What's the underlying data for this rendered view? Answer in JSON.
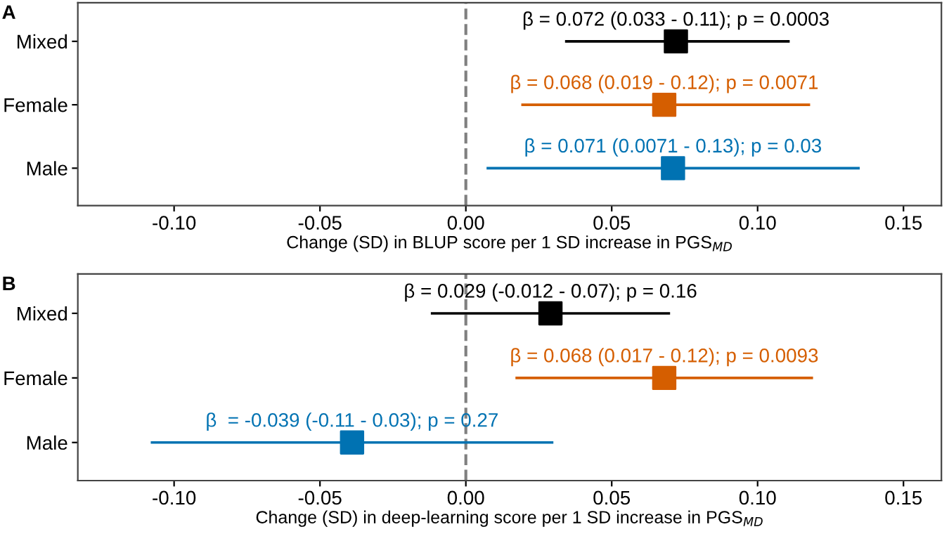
{
  "chart_data": [
    {
      "type": "scatter",
      "orientation": "horizontal",
      "title": "A",
      "xlabel": "Change (SD) in BLUP score per 1 SD increase in PGS$_{MD}$",
      "categories": [
        "Mixed",
        "Female",
        "Male"
      ],
      "values": [
        0.072,
        0.068,
        0.071
      ],
      "colors": [
        "#000000",
        "#d55e00",
        "#0072b2"
      ],
      "errors": [
        [
          0.034,
          0.111
        ],
        [
          0.019,
          0.118
        ],
        [
          0.0071,
          0.135
        ]
      ],
      "xlim": [
        -0.133,
        0.163
      ],
      "xticks": [
        {
          "value": -0.1,
          "label": "-0.10"
        },
        {
          "value": -0.05,
          "label": "-0.05"
        },
        {
          "value": 0,
          "label": "0.00"
        },
        {
          "value": 0.05,
          "label": "0.05"
        },
        {
          "value": 0.1,
          "label": "0.10"
        },
        {
          "value": 0.15,
          "label": "0.15"
        }
      ],
      "ref_lines": [
        {
          "axis": "x",
          "value": 0,
          "color": "#808080",
          "line_style": "dashed"
        }
      ],
      "annotations": [
        {
          "text": "β = 0.072 (0.033 - 0.11); p = 0.0003",
          "x": 0.072,
          "y": "Mixed"
        },
        {
          "text": "β = 0.068 (0.019 - 0.12); p = 0.0071",
          "x": 0.068,
          "y": "Female"
        },
        {
          "text": "β = 0.071 (0.0071 - 0.13); p = 0.03",
          "x": 0.071,
          "y": "Male"
        }
      ],
      "marker": "square",
      "grid": false
    },
    {
      "type": "scatter",
      "orientation": "horizontal",
      "title": "B",
      "xlabel": "Change (SD) in deep-learning score per 1 SD increase in PGS$_{MD}$",
      "categories": [
        "Mixed",
        "Female",
        "Male"
      ],
      "values": [
        0.029,
        0.068,
        -0.039
      ],
      "colors": [
        "#000000",
        "#d55e00",
        "#0072b2"
      ],
      "errors": [
        [
          -0.012,
          0.07
        ],
        [
          0.017,
          0.119
        ],
        [
          -0.108,
          0.03
        ]
      ],
      "xlim": [
        -0.133,
        0.163
      ],
      "xticks": [
        {
          "value": -0.1,
          "label": "-0.10"
        },
        {
          "value": -0.05,
          "label": "-0.05"
        },
        {
          "value": 0,
          "label": "0.00"
        },
        {
          "value": 0.05,
          "label": "0.05"
        },
        {
          "value": 0.1,
          "label": "0.10"
        },
        {
          "value": 0.15,
          "label": "0.15"
        }
      ],
      "ref_lines": [
        {
          "axis": "x",
          "value": 0,
          "color": "#808080",
          "line_style": "dashed"
        }
      ],
      "annotations": [
        {
          "text": "β = 0.029 (-0.012 - 0.07); p = 0.16",
          "x": 0.029,
          "y": "Mixed"
        },
        {
          "text": "β = 0.068 (0.017 - 0.12); p = 0.0093",
          "x": 0.068,
          "y": "Female"
        },
        {
          "text": "β  = -0.039 (-0.11 - 0.03); p = 0.27",
          "x": -0.039,
          "y": "Male"
        }
      ],
      "marker": "square",
      "grid": false
    }
  ]
}
